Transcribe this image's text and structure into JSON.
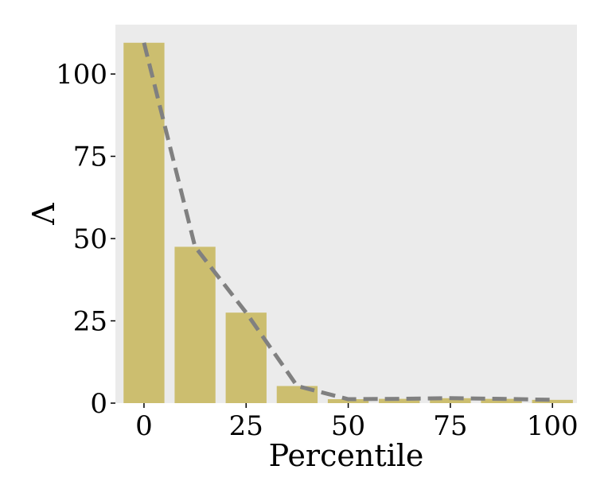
{
  "chart_data": {
    "type": "bar",
    "title": "",
    "xlabel": "Percentile",
    "ylabel": "Λ",
    "x": [
      0,
      12.5,
      25,
      37.5,
      50,
      62.5,
      75,
      87.5,
      100
    ],
    "series": [
      {
        "type": "bar",
        "values": [
          109.5,
          47.5,
          27.5,
          5.2,
          1.2,
          1.3,
          1.5,
          1.3,
          1.0
        ],
        "color": "#ccbe6f"
      },
      {
        "type": "line",
        "style": "dashed",
        "values": [
          109.5,
          47.5,
          27.5,
          5.2,
          1.2,
          1.3,
          1.5,
          1.3,
          1.0
        ],
        "color": "#808080"
      }
    ],
    "xticks": [
      "0",
      "25",
      "50",
      "75",
      "100"
    ],
    "yticks": [
      "0",
      "25",
      "50",
      "75",
      "100"
    ],
    "xlim": [
      -7,
      106
    ],
    "ylim": [
      0,
      115
    ],
    "grid": false,
    "background": "#ebebeb"
  }
}
